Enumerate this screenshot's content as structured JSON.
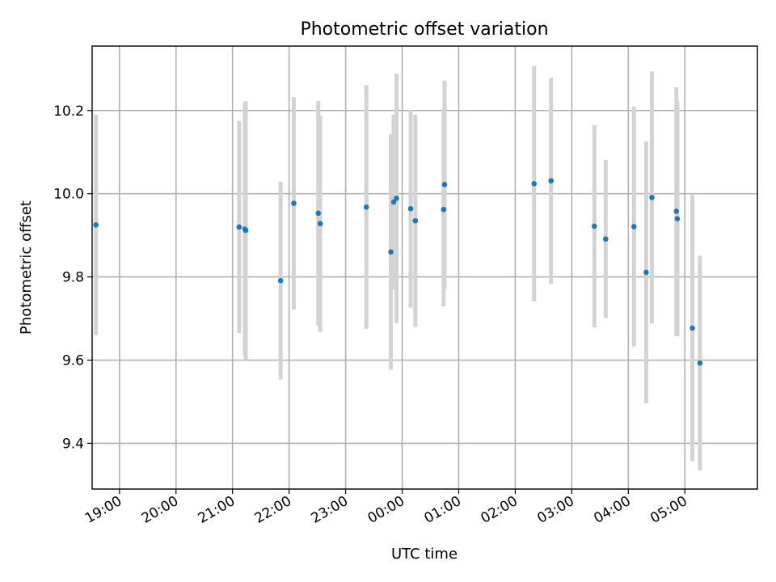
{
  "chart_data": {
    "type": "scatter",
    "title": "Photometric offset variation",
    "xlabel": "UTC time",
    "ylabel": "Photometric offset",
    "x_axis": "time",
    "xlim": [
      "18:31",
      "06:17"
    ],
    "ylim": [
      9.29,
      10.355
    ],
    "x_ticks": [
      "19:00",
      "20:00",
      "21:00",
      "22:00",
      "23:00",
      "00:00",
      "01:00",
      "02:00",
      "03:00",
      "04:00",
      "05:00"
    ],
    "y_ticks": [
      9.4,
      9.6,
      9.8,
      10.0,
      10.2
    ],
    "grid": true,
    "series": [
      {
        "marker_color": "#1f77b4",
        "errorbar_color": "#d3d3d3",
        "points": [
          {
            "x": "18:35",
            "y": 9.925,
            "err": 0.265
          },
          {
            "x": "21:07",
            "y": 9.92,
            "err": 0.255
          },
          {
            "x": "21:13",
            "y": 9.915,
            "err": 0.305
          },
          {
            "x": "21:14",
            "y": 9.912,
            "err": 0.31
          },
          {
            "x": "21:51",
            "y": 9.791,
            "err": 0.238
          },
          {
            "x": "22:05",
            "y": 9.977,
            "err": 0.255
          },
          {
            "x": "22:31",
            "y": 9.953,
            "err": 0.27
          },
          {
            "x": "22:33",
            "y": 9.928,
            "err": 0.26
          },
          {
            "x": "23:22",
            "y": 9.968,
            "err": 0.293
          },
          {
            "x": "23:48",
            "y": 9.86,
            "err": 0.283
          },
          {
            "x": "23:51",
            "y": 9.98,
            "err": 0.21
          },
          {
            "x": "23:54",
            "y": 9.989,
            "err": 0.3
          },
          {
            "x": "00:09",
            "y": 9.964,
            "err": 0.238
          },
          {
            "x": "00:14",
            "y": 9.935,
            "err": 0.255
          },
          {
            "x": "00:44",
            "y": 9.962,
            "err": 0.233
          },
          {
            "x": "00:45",
            "y": 10.022,
            "err": 0.25
          },
          {
            "x": "02:20",
            "y": 10.024,
            "err": 0.283
          },
          {
            "x": "02:38",
            "y": 10.031,
            "err": 0.248
          },
          {
            "x": "03:24",
            "y": 9.922,
            "err": 0.243
          },
          {
            "x": "03:36",
            "y": 9.891,
            "err": 0.19
          },
          {
            "x": "04:06",
            "y": 9.921,
            "err": 0.288
          },
          {
            "x": "04:19",
            "y": 9.811,
            "err": 0.315
          },
          {
            "x": "04:25",
            "y": 9.991,
            "err": 0.303
          },
          {
            "x": "04:51",
            "y": 9.958,
            "err": 0.298
          },
          {
            "x": "04:52",
            "y": 9.94,
            "err": 0.283
          },
          {
            "x": "05:08",
            "y": 9.677,
            "err": 0.32
          },
          {
            "x": "05:16",
            "y": 9.593,
            "err": 0.258
          }
        ]
      }
    ]
  }
}
